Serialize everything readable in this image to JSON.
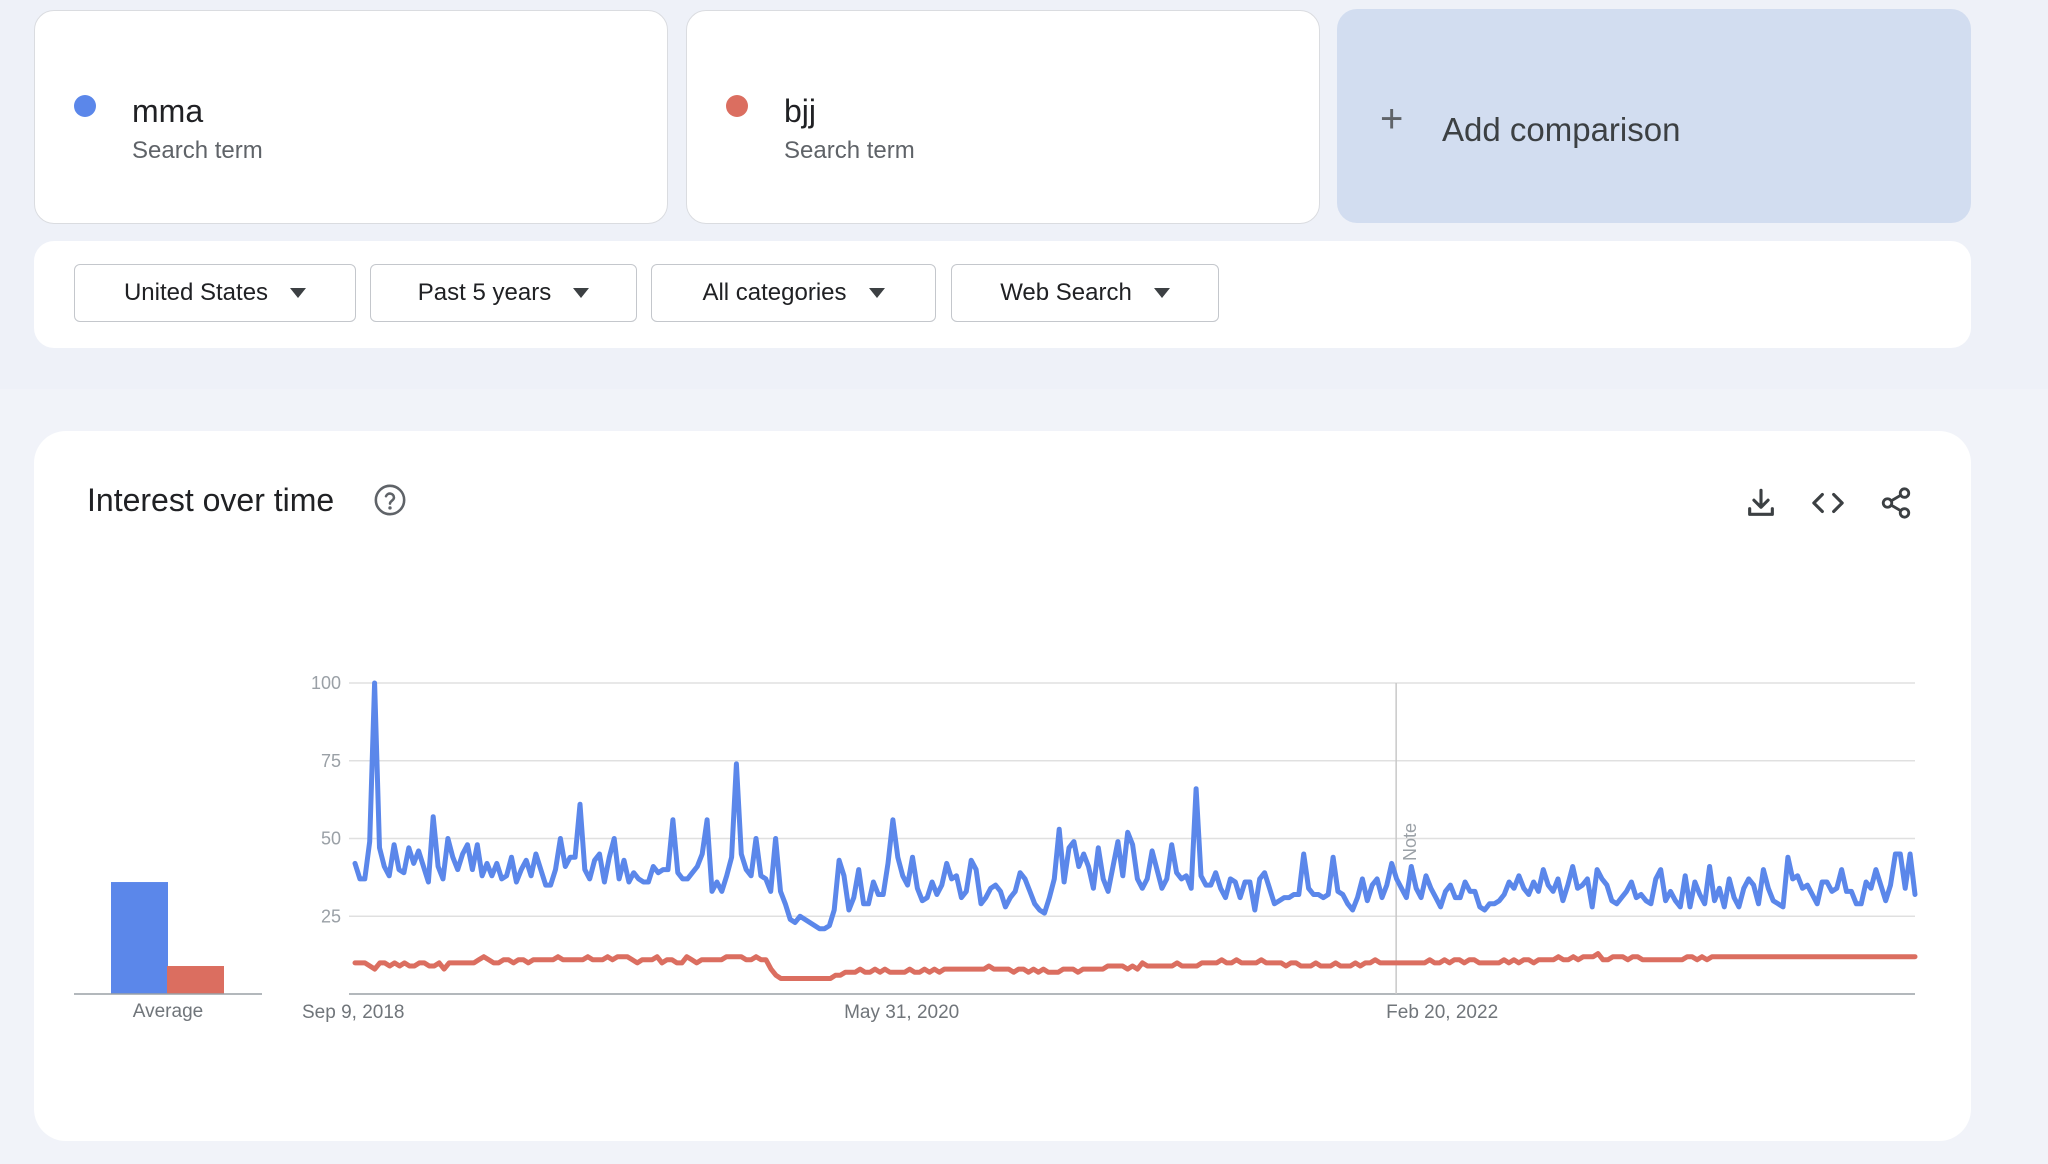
{
  "terms": [
    {
      "name": "mma",
      "subtitle": "Search term",
      "color": "#5b87ea"
    },
    {
      "name": "bjj",
      "subtitle": "Search term",
      "color": "#db6e60"
    }
  ],
  "add_comparison": {
    "label": "Add comparison",
    "icon": "plus-icon"
  },
  "filters": [
    {
      "label": "United States"
    },
    {
      "label": "Past 5 years"
    },
    {
      "label": "All categories"
    },
    {
      "label": "Web Search"
    }
  ],
  "chart_card": {
    "title": "Interest over time",
    "icons": [
      "help-icon",
      "download-icon",
      "embed-code-icon",
      "share-icon"
    ]
  },
  "chart_data": {
    "type": "line",
    "title": "Interest over time",
    "ylim": [
      0,
      100
    ],
    "yticks": [
      25,
      50,
      75,
      100
    ],
    "grid": true,
    "x_start": "Sep 9, 2018",
    "x_end": "Aug 27, 2023",
    "xtick_labels": [
      "Sep 9, 2018",
      "May 31, 2020",
      "Feb 20, 2022"
    ],
    "note": {
      "text": "Note",
      "date": "Jan 1, 2022"
    },
    "average": {
      "label": "Average",
      "values": [
        36,
        9
      ]
    },
    "series": [
      {
        "name": "mma",
        "color": "#5b87ea",
        "values": [
          42,
          37,
          37,
          49,
          100,
          47,
          41,
          38,
          48,
          40,
          39,
          47,
          42,
          46,
          41,
          36,
          57,
          41,
          37,
          50,
          44,
          40,
          45,
          48,
          40,
          48,
          38,
          42,
          38,
          42,
          37,
          38,
          44,
          36,
          40,
          43,
          38,
          45,
          40,
          35,
          35,
          40,
          50,
          41,
          44,
          44,
          61,
          40,
          37,
          43,
          45,
          36,
          44,
          50,
          37,
          43,
          36,
          39,
          37,
          36,
          36,
          41,
          39,
          40,
          40,
          56,
          39,
          37,
          37,
          39,
          41,
          45,
          56,
          33,
          36,
          33,
          38,
          44,
          74,
          45,
          40,
          38,
          50,
          38,
          37,
          33,
          50,
          33,
          29,
          24,
          23,
          25,
          24,
          23,
          22,
          21,
          21,
          22,
          27,
          43,
          38,
          27,
          31,
          40,
          29,
          29,
          36,
          32,
          32,
          42,
          56,
          44,
          38,
          35,
          44,
          34,
          30,
          31,
          36,
          32,
          35,
          42,
          37,
          38,
          31,
          33,
          43,
          40,
          29,
          31,
          34,
          35,
          33,
          28,
          31,
          33,
          39,
          37,
          33,
          29,
          27,
          26,
          31,
          37,
          53,
          36,
          47,
          49,
          41,
          45,
          41,
          34,
          47,
          37,
          33,
          41,
          49,
          38,
          52,
          48,
          37,
          34,
          37,
          46,
          40,
          34,
          37,
          48,
          39,
          37,
          38,
          34,
          66,
          38,
          35,
          35,
          39,
          34,
          31,
          37,
          36,
          31,
          36,
          36,
          27,
          37,
          39,
          34,
          29,
          30,
          31,
          31,
          32,
          32,
          45,
          34,
          32,
          32,
          31,
          32,
          44,
          33,
          32,
          29,
          27,
          31,
          37,
          30,
          35,
          37,
          31,
          35,
          42,
          37,
          34,
          31,
          41,
          34,
          31,
          38,
          34,
          31,
          28,
          33,
          35,
          31,
          31,
          36,
          33,
          33,
          28,
          27,
          29,
          29,
          30,
          32,
          36,
          34,
          38,
          34,
          32,
          36,
          33,
          40,
          35,
          33,
          37,
          30,
          35,
          41,
          34,
          35,
          37,
          28,
          40,
          37,
          35,
          30,
          29,
          31,
          33,
          36,
          31,
          32,
          30,
          29,
          37,
          40,
          30,
          33,
          30,
          28,
          38,
          28,
          36,
          32,
          29,
          41,
          30,
          34,
          28,
          37,
          31,
          28,
          34,
          37,
          35,
          29,
          40,
          34,
          30,
          29,
          28,
          44,
          37,
          38,
          34,
          35,
          32,
          29,
          36,
          36,
          33,
          34,
          40,
          33,
          33,
          29,
          29,
          36,
          34,
          40,
          35,
          30,
          35,
          45,
          45,
          34,
          45,
          32
        ]
      },
      {
        "name": "bjj",
        "color": "#db6e60",
        "values": [
          10,
          10,
          10,
          9,
          8,
          10,
          10,
          9,
          10,
          9,
          10,
          9,
          9,
          10,
          10,
          9,
          9,
          10,
          8,
          10,
          10,
          10,
          10,
          10,
          10,
          11,
          12,
          11,
          10,
          10,
          11,
          11,
          10,
          11,
          11,
          10,
          11,
          11,
          11,
          11,
          11,
          12,
          11,
          11,
          11,
          11,
          11,
          12,
          11,
          11,
          11,
          12,
          11,
          12,
          12,
          12,
          11,
          10,
          11,
          11,
          11,
          12,
          10,
          11,
          11,
          10,
          10,
          12,
          11,
          10,
          11,
          11,
          11,
          11,
          11,
          12,
          12,
          12,
          12,
          11,
          11,
          12,
          11,
          11,
          8,
          6,
          5,
          5,
          5,
          5,
          5,
          5,
          5,
          5,
          5,
          5,
          5,
          6,
          6,
          7,
          7,
          7,
          8,
          7,
          7,
          8,
          7,
          8,
          7,
          7,
          7,
          7,
          8,
          7,
          7,
          8,
          7,
          8,
          7,
          8,
          8,
          8,
          8,
          8,
          8,
          8,
          8,
          8,
          9,
          8,
          8,
          8,
          8,
          7,
          8,
          8,
          7,
          8,
          7,
          8,
          7,
          7,
          7,
          8,
          8,
          8,
          7,
          8,
          8,
          8,
          8,
          8,
          9,
          9,
          9,
          9,
          8,
          9,
          8,
          10,
          9,
          9,
          9,
          9,
          9,
          9,
          10,
          9,
          9,
          9,
          9,
          10,
          10,
          10,
          10,
          11,
          10,
          10,
          11,
          10,
          10,
          10,
          10,
          11,
          10,
          10,
          10,
          10,
          9,
          10,
          10,
          9,
          9,
          9,
          10,
          9,
          9,
          9,
          10,
          9,
          9,
          9,
          10,
          9,
          10,
          10,
          11,
          10,
          10,
          10,
          10,
          10,
          10,
          10,
          10,
          10,
          10,
          11,
          10,
          10,
          11,
          10,
          11,
          11,
          10,
          11,
          11,
          10,
          10,
          10,
          10,
          10,
          11,
          10,
          11,
          10,
          11,
          11,
          10,
          11,
          11,
          11,
          11,
          12,
          11,
          11,
          12,
          11,
          12,
          12,
          12,
          13,
          11,
          11,
          12,
          12,
          12,
          11,
          12,
          12,
          11,
          11,
          11,
          11,
          11,
          11,
          11,
          11,
          11,
          12,
          12,
          11,
          12,
          11,
          12,
          12,
          12,
          12,
          12,
          12,
          12,
          12,
          12,
          12,
          12,
          12,
          12,
          12,
          12,
          12,
          12,
          12,
          12,
          12,
          12,
          12,
          12,
          12,
          12,
          12,
          12,
          12,
          12,
          12,
          12,
          12,
          12,
          12,
          12,
          12,
          12,
          12,
          12,
          12,
          12,
          12
        ]
      }
    ]
  }
}
